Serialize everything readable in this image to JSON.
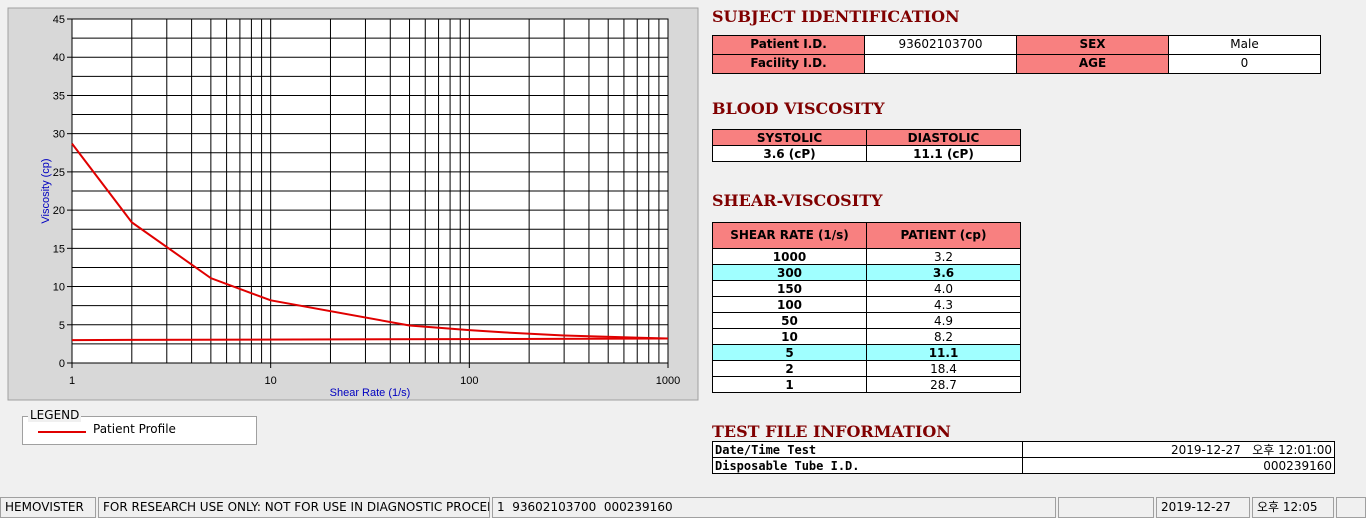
{
  "chart_data": {
    "type": "line",
    "x_label": "Shear Rate (1/s)",
    "y_label": "Viscosity (cp)",
    "x_scale": "log",
    "xlim": [
      1,
      1000
    ],
    "xticks": [
      1,
      10,
      100,
      1000
    ],
    "ylim": [
      0,
      45
    ],
    "yticks": [
      0,
      5,
      10,
      15,
      20,
      25,
      30,
      35,
      40,
      45
    ],
    "grid": true,
    "legend_title": "LEGEND",
    "series": [
      {
        "name": "Patient Profile",
        "color": "#e00000",
        "x": [
          1,
          2,
          5,
          10,
          50,
          100,
          150,
          300,
          1000
        ],
        "values": [
          28.7,
          18.4,
          11.1,
          8.2,
          4.9,
          4.3,
          4.0,
          3.6,
          3.2
        ]
      },
      {
        "color": "#e00000",
        "x": [
          1,
          1000
        ],
        "values": [
          3.0,
          3.2
        ]
      }
    ]
  },
  "subject_identification": {
    "title": "SUBJECT IDENTIFICATION",
    "fields": [
      {
        "label": "Patient I.D.",
        "value": "93602103700"
      },
      {
        "label": "SEX",
        "value": "Male"
      },
      {
        "label": "Facility I.D."
      },
      {
        "label": "AGE",
        "value": 0
      }
    ]
  },
  "blood_viscosity": {
    "title": "BLOOD VISCOSITY",
    "headers": [
      "SYSTOLIC",
      "DIASTOLIC"
    ],
    "values": [
      "3.6 (cP)",
      "11.1 (cP)"
    ]
  },
  "shear_viscosity": {
    "title": "SHEAR-VISCOSITY",
    "headers": [
      "SHEAR RATE (1/s)",
      "PATIENT (cp)"
    ],
    "rows": [
      {
        "cells": [
          "1000",
          "3.2"
        ]
      },
      {
        "cells": [
          "300",
          "3.6"
        ],
        "highlight": true
      },
      {
        "cells": [
          "150",
          "4.0"
        ]
      },
      {
        "cells": [
          "100",
          "4.3"
        ]
      },
      {
        "cells": [
          "50",
          "4.9"
        ]
      },
      {
        "cells": [
          "10",
          "8.2"
        ]
      },
      {
        "cells": [
          "5",
          "11.1"
        ],
        "highlight": true
      },
      {
        "cells": [
          "2",
          "18.4"
        ]
      },
      {
        "cells": [
          "1",
          "28.7"
        ]
      }
    ]
  },
  "test_file_information": {
    "title": "TEST FILE INFORMATION",
    "rows": [
      [
        "Date/Time Test",
        "2019-12-27   오후 12:01:00"
      ],
      [
        "Disposable Tube I.D.",
        "000239160"
      ]
    ]
  },
  "status_bar": [
    "HEMOVISTER",
    "FOR RESEARCH USE ONLY: NOT FOR USE IN DIAGNOSTIC PROCEDURES",
    "1  93602103700  000239160",
    "2019-12-27",
    "오후 12:05"
  ]
}
